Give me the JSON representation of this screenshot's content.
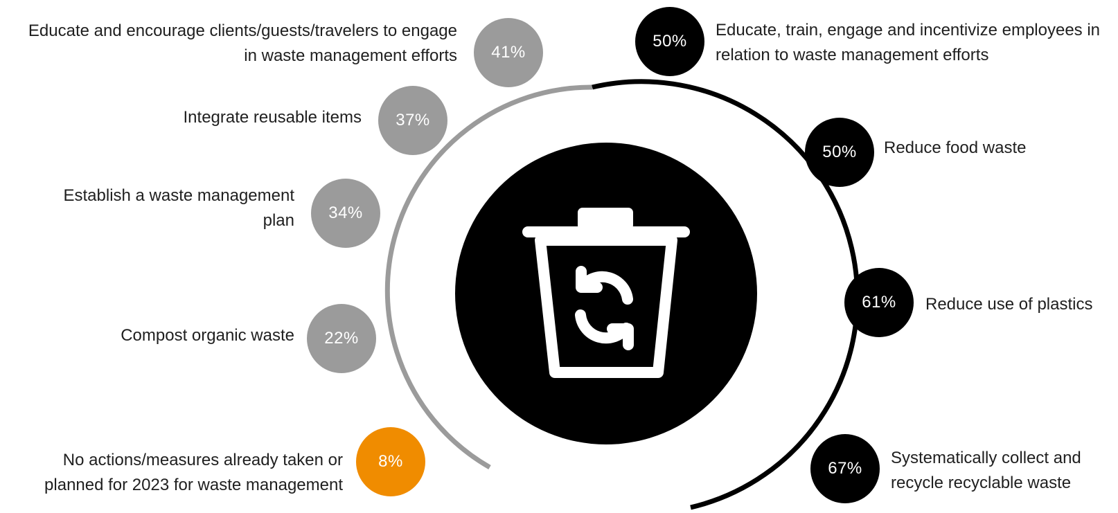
{
  "colors": {
    "left_arc": "#9b9b9b",
    "right_arc": "#000000",
    "left_badge": "#9b9b9b",
    "right_badge": "#000000",
    "none_badge": "#f08c00",
    "center_disc": "#000000",
    "icon": "#ffffff"
  },
  "center_icon": "recycle-bin-icon",
  "left_items": [
    {
      "value": "41%",
      "label": "Educate and encourage clients/guests/travelers to engage in waste management efforts"
    },
    {
      "value": "37%",
      "label": "Integrate reusable items"
    },
    {
      "value": "34%",
      "label": "Establish a waste management plan"
    },
    {
      "value": "22%",
      "label": "Compost organic waste"
    },
    {
      "value": "8%",
      "label": "No actions/measures already taken or planned for 2023 for waste management"
    }
  ],
  "right_items": [
    {
      "value": "50%",
      "label": "Educate, train, engage and incentivize employees in relation to waste management efforts"
    },
    {
      "value": "50%",
      "label": "Reduce food waste"
    },
    {
      "value": "61%",
      "label": "Reduce use of plastics"
    },
    {
      "value": "67%",
      "label": "Systematically collect and recycle recyclable waste"
    }
  ]
}
